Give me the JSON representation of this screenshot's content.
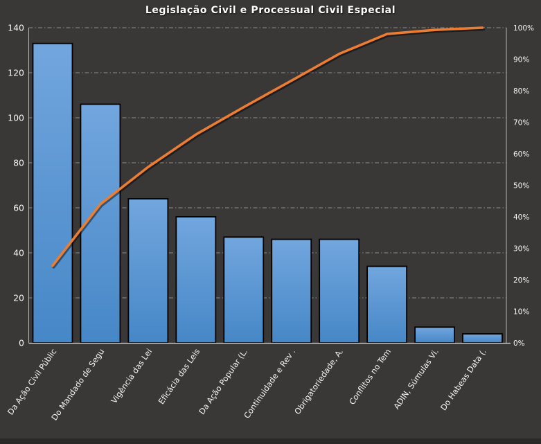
{
  "chart_data": {
    "type": "bar",
    "subtype": "pareto (bars + cumulative % line)",
    "title": "Legislação Civil e Processual Civil Especial",
    "categories": [
      "Da Ação Civil Públic",
      "Do Mandado de Segu",
      "Vigência das Lei",
      "Eficácia das Leis",
      "Da Ação Popular (L.",
      "Continuidade e Rev .",
      "Obrigatoriedade, A.",
      "Conflitos no Tem",
      "ADIN, Súmulas Vi.",
      "Do Habeas Data (."
    ],
    "series": [
      {
        "name": "frequency-bars",
        "type": "bar",
        "axis": "left",
        "values": [
          133,
          106,
          64,
          56,
          47,
          46,
          46,
          34,
          7,
          4
        ]
      },
      {
        "name": "cumulative-percent-line",
        "type": "line",
        "axis": "right",
        "values": [
          24.5,
          44.0,
          55.8,
          66.1,
          74.8,
          83.2,
          91.7,
          98.0,
          99.3,
          100.0
        ]
      }
    ],
    "left_axis": {
      "min": 0,
      "max": 140,
      "step": 20,
      "ticks": [
        "0",
        "20",
        "40",
        "60",
        "80",
        "100",
        "120",
        "140"
      ]
    },
    "right_axis": {
      "min": 0,
      "max": 100,
      "step": 10,
      "ticks": [
        "0%",
        "10%",
        "20%",
        "30%",
        "40%",
        "50%",
        "60%",
        "70%",
        "80%",
        "90%",
        "100%"
      ]
    },
    "grid": "horizontal dash-dot lines at every 20 units of left axis",
    "legend": "none"
  },
  "colors": {
    "background": "#3a3737",
    "bottom_strip": "#2b2828",
    "title_text": "#ffffff",
    "axis_text": "#f5f5f5",
    "gridline": "#b5b2b2",
    "axis_line": "#d6d6d6",
    "bar_fill_top": "#72a6de",
    "bar_fill_bottom": "#4687c7",
    "bar_border": "#000000",
    "line": "#ed7d31",
    "line_shadow": "rgba(0,0,0,0.45)"
  }
}
